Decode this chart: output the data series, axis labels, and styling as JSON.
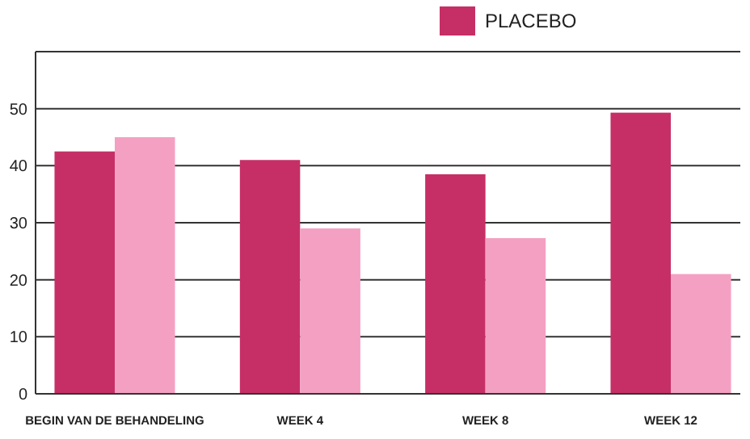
{
  "chart_data": {
    "type": "bar",
    "categories": [
      "BEGIN VAN DE BEHANDELING",
      "WEEK 4",
      "WEEK 8",
      "WEEK 12"
    ],
    "series": [
      {
        "name": "PLACEBO",
        "color": "#c62f66",
        "values": [
          42.5,
          41,
          38.5,
          49.3
        ]
      },
      {
        "color": "#f4a0c2",
        "values": [
          45,
          29,
          27.3,
          21
        ]
      }
    ],
    "ylim": [
      0,
      60
    ],
    "yticks": [
      0,
      10,
      20,
      30,
      40,
      50
    ],
    "grid": "y",
    "legend": "top right"
  }
}
